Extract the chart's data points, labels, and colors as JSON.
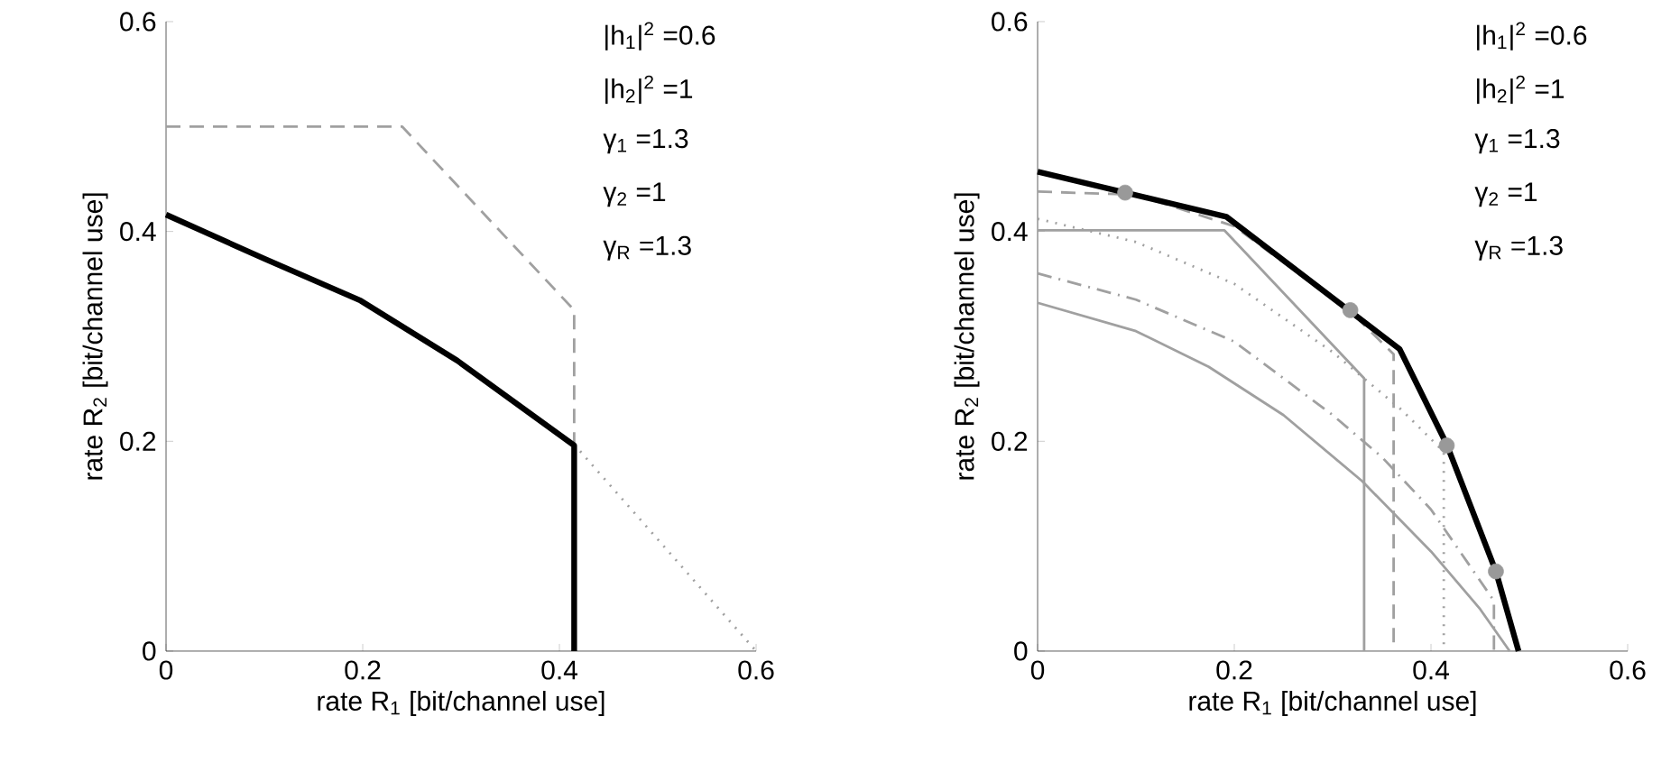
{
  "chart_data": [
    {
      "type": "line",
      "xlabel": "rate R$_{1}$  [bit/channel use]",
      "ylabel": "rate R$_{2}$  [bit/channel use]",
      "xlim": [
        0,
        0.6
      ],
      "ylim": [
        0,
        0.6
      ],
      "xticks": [
        0,
        0.2,
        0.4,
        0.6
      ],
      "yticks": [
        0,
        0.2,
        0.4,
        0.6
      ],
      "annotations": [
        "|h$_{1}$|$^{2}$ =0.6",
        "|h$_{2}$|$^{2}$ =1",
        "γ$_{1}$ =1.3",
        "γ$_{2}$ =1",
        "γ$_{R}$ =1.3"
      ],
      "series": [
        {
          "color": "#a0a0a0",
          "line_style": "dashed",
          "x": [
            0,
            0.24,
            0.415,
            0.415
          ],
          "values": [
            0.5,
            0.5,
            0.325,
            0.197
          ]
        },
        {
          "color": "#a0a0a0",
          "line_style": "dotted",
          "x": [
            0.415,
            0.6
          ],
          "values": [
            0.197,
            0
          ]
        },
        {
          "color": "#000000",
          "line_style": "solid",
          "x": [
            0,
            0.1,
            0.198,
            0.296,
            0.415,
            0.415
          ],
          "values": [
            0.416,
            0.374,
            0.334,
            0.277,
            0.196,
            0
          ]
        }
      ]
    },
    {
      "type": "line",
      "xlabel": "rate R$_{1}$  [bit/channel use]",
      "ylabel": "rate R$_{2}$  [bit/channel use]",
      "xlim": [
        0,
        0.6
      ],
      "ylim": [
        0,
        0.6
      ],
      "xticks": [
        0,
        0.2,
        0.4,
        0.6
      ],
      "yticks": [
        0,
        0.2,
        0.4,
        0.6
      ],
      "annotations": [
        "|h$_{1}$|$^{2}$ =0.6",
        "|h$_{2}$|$^{2}$ =1",
        "γ$_{1}$ =1.3",
        "γ$_{2}$ =1",
        "γ$_{R}$ =1.3"
      ],
      "series": [
        {
          "color": "#a0a0a0",
          "line_style": "solid",
          "x": [
            0,
            0.1,
            0.174,
            0.25,
            0.33,
            0.4,
            0.45,
            0.48
          ],
          "values": [
            0.332,
            0.305,
            0.271,
            0.225,
            0.162,
            0.095,
            0.04,
            0
          ]
        },
        {
          "color": "#a0a0a0",
          "line_style": "dashdot",
          "x": [
            0,
            0.1,
            0.2,
            0.3,
            0.35,
            0.4,
            0.464,
            0.464
          ],
          "values": [
            0.36,
            0.335,
            0.295,
            0.225,
            0.185,
            0.135,
            0.048,
            0
          ]
        },
        {
          "color": "#a0a0a0",
          "line_style": "dotted",
          "x": [
            0,
            0.1,
            0.2,
            0.3,
            0.37,
            0.413,
            0.413
          ],
          "values": [
            0.412,
            0.39,
            0.35,
            0.285,
            0.23,
            0.19,
            0
          ]
        },
        {
          "color": "#a0a0a0",
          "line_style": "solid",
          "x": [
            0,
            0.19,
            0.332,
            0.332
          ],
          "values": [
            0.401,
            0.401,
            0.26,
            0
          ]
        },
        {
          "color": "#a0a0a0",
          "line_style": "dashed",
          "x": [
            0,
            0.1,
            0.2,
            0.32,
            0.362,
            0.362
          ],
          "values": [
            0.438,
            0.435,
            0.405,
            0.322,
            0.283,
            0
          ]
        },
        {
          "color": "#000000",
          "line_style": "solid",
          "x": [
            0,
            0.192,
            0.368,
            0.416,
            0.466,
            0.489
          ],
          "values": [
            0.457,
            0.414,
            0.288,
            0.197,
            0.076,
            0
          ]
        },
        {
          "type": "scatter",
          "color": "#999999",
          "marker": "circle",
          "x": [
            0.089,
            0.318,
            0.416,
            0.466
          ],
          "values": [
            0.437,
            0.325,
            0.196,
            0.076
          ]
        }
      ]
    }
  ]
}
